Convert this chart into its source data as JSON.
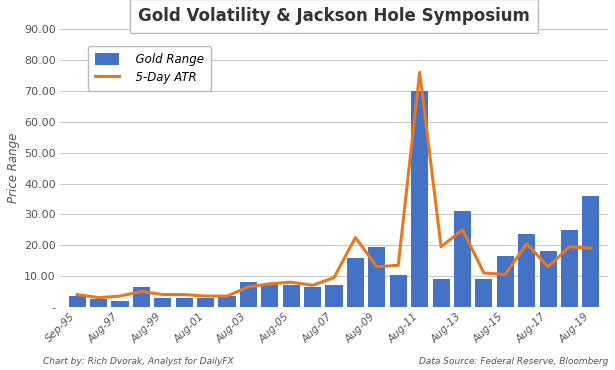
{
  "title": "Gold Volatility & Jackson Hole Symposium",
  "ylabel": "Price Range",
  "footnote_left": "Chart by: Rich Dvorak, Analyst for DailyFX",
  "footnote_right": "Data Source: Federal Reserve, Bloomberg",
  "x_labels": [
    "Sep-95",
    "Aug-97",
    "Aug-99",
    "Aug-01",
    "Aug-03",
    "Aug-05",
    "Aug-07",
    "Aug-09",
    "Aug-11",
    "Aug-13",
    "Aug-15",
    "Aug-17",
    "Aug-19"
  ],
  "bar_color": "#4472C4",
  "atr_color": "#E87722",
  "background_color": "#FFFFFF",
  "grid_color": "#C8C8C8",
  "ylim": [
    0,
    90
  ],
  "yticks": [
    0,
    10,
    20,
    30,
    40,
    50,
    60,
    70,
    80,
    90
  ],
  "ytick_labels": [
    "-",
    "10.00",
    "20.00",
    "30.00",
    "40.00",
    "50.00",
    "60.00",
    "70.00",
    "80.00",
    "90.00"
  ],
  "years": [
    1995,
    1996,
    1997,
    1998,
    1999,
    2000,
    2001,
    2002,
    2003,
    2004,
    2005,
    2006,
    2007,
    2008,
    2009,
    2010,
    2011,
    2012,
    2013,
    2014,
    2015,
    2016,
    2017,
    2018,
    2019
  ],
  "bar_vals": [
    3.5,
    2.5,
    2.0,
    6.5,
    3.0,
    3.0,
    3.0,
    3.5,
    8.0,
    7.5,
    7.0,
    6.5,
    7.0,
    16.0,
    19.5,
    10.5,
    70.0,
    9.0,
    31.0,
    9.0,
    16.5,
    23.5,
    18.0,
    25.0,
    36.0
  ],
  "atr_vals": [
    4.0,
    3.0,
    3.5,
    5.0,
    4.0,
    4.0,
    3.5,
    3.5,
    6.5,
    7.5,
    8.0,
    7.0,
    9.5,
    22.5,
    13.0,
    13.5,
    76.0,
    19.5,
    25.0,
    11.0,
    10.5,
    20.5,
    13.0,
    19.5,
    19.0
  ]
}
